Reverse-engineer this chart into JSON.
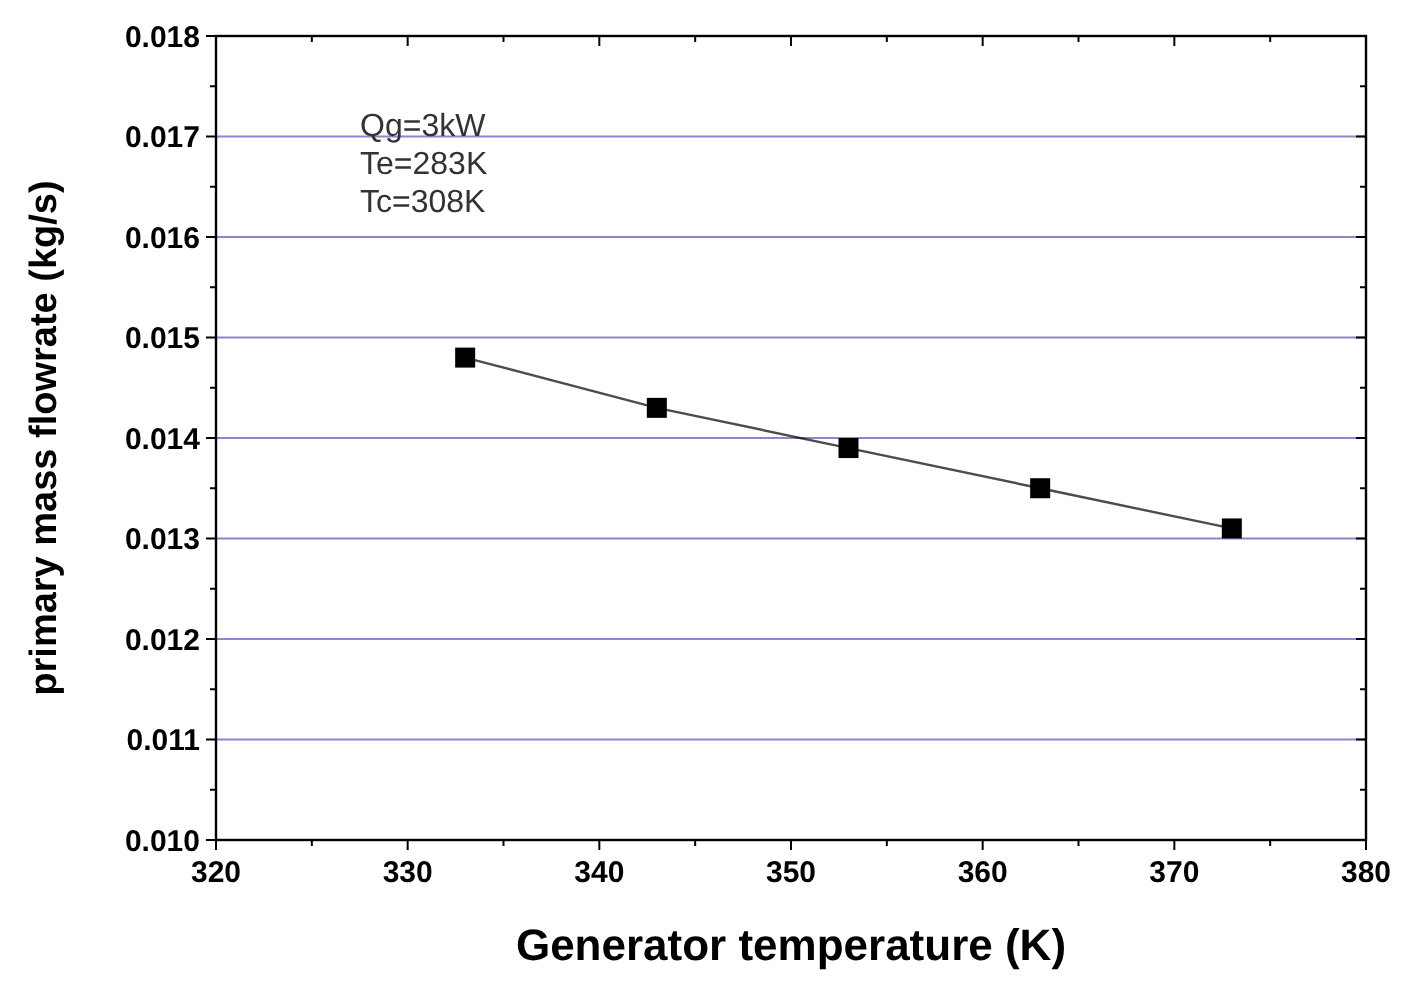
{
  "chart_data": {
    "type": "line",
    "xlabel": "Generator temperature (K)",
    "ylabel": "primary mass flowrate (kg/s)",
    "annotations": [
      "Qg=3kW",
      "Te=283K",
      "Tc=308K"
    ],
    "x": [
      333,
      343,
      353,
      363,
      373
    ],
    "series": [
      {
        "color": "#000000",
        "values": [
          0.0148,
          0.0143,
          0.0139,
          0.0135,
          0.0131
        ]
      }
    ],
    "xlim": [
      320,
      380
    ],
    "xticks": [
      320,
      330,
      340,
      350,
      360,
      370,
      380
    ],
    "ylim": [
      0.01,
      0.018
    ],
    "yticks": [
      {
        "value": 0.01,
        "label": "0.010"
      },
      {
        "value": 0.011,
        "label": "0.011"
      },
      {
        "value": 0.012,
        "label": "0.012"
      },
      {
        "value": 0.013,
        "label": "0.013"
      },
      {
        "value": 0.014,
        "label": "0.014"
      },
      {
        "value": 0.015,
        "label": "0.015"
      },
      {
        "value": 0.016,
        "label": "0.016"
      },
      {
        "value": 0.017,
        "label": "0.017"
      },
      {
        "value": 0.018,
        "label": "0.018"
      }
    ],
    "grid": "y",
    "marker": "square",
    "line_style": "solid"
  }
}
